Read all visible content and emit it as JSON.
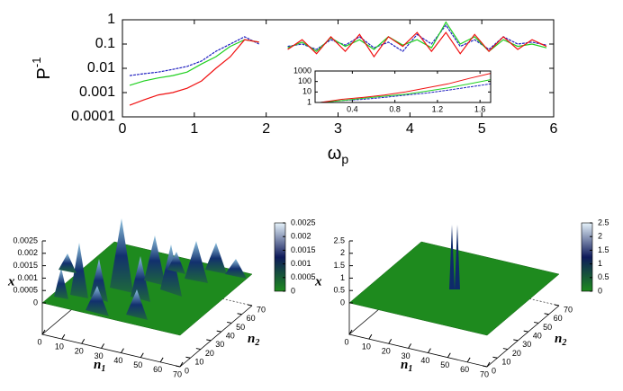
{
  "chart_data": [
    {
      "type": "line",
      "xlabel": "ω",
      "xlabel_sub": "p",
      "ylabel": "P",
      "ylabel_sup": "-1",
      "xlim": [
        0,
        6
      ],
      "xticks": [
        0,
        1,
        2,
        3,
        4,
        5,
        6
      ],
      "ylim": [
        0.0001,
        1
      ],
      "yticks": [
        1,
        0.1,
        0.01,
        0.001,
        0.0001
      ],
      "log_y": true,
      "x": [
        0.1,
        0.3,
        0.5,
        0.7,
        0.9,
        1.1,
        1.3,
        1.5,
        1.7,
        1.9,
        2.1,
        2.3,
        2.5,
        2.7,
        2.9,
        3.1,
        3.3,
        3.5,
        3.7,
        3.9,
        4.1,
        4.3,
        4.5,
        4.7,
        4.9,
        5.1,
        5.3,
        5.5,
        5.7,
        5.9
      ],
      "series": [
        {
          "color": "#2020c0",
          "values": [
            0.005,
            0.006,
            0.007,
            0.009,
            0.012,
            0.02,
            0.05,
            0.1,
            0.2,
            0.1,
            null,
            0.08,
            0.1,
            0.06,
            0.15,
            0.09,
            0.2,
            0.07,
            0.12,
            0.05,
            0.25,
            0.1,
            0.6,
            0.08,
            0.15,
            0.06,
            0.2,
            0.1,
            0.12,
            0.09
          ]
        },
        {
          "color": "#20d020",
          "values": [
            0.002,
            0.003,
            0.004,
            0.005,
            0.007,
            0.015,
            0.03,
            0.08,
            0.15,
            0.12,
            null,
            0.07,
            0.12,
            0.05,
            0.18,
            0.08,
            0.15,
            0.06,
            0.2,
            0.09,
            0.15,
            0.07,
            0.8,
            0.1,
            0.2,
            0.05,
            0.15,
            0.08,
            0.1,
            0.07
          ]
        },
        {
          "color": "#f01010",
          "values": [
            0.0003,
            0.0005,
            0.0008,
            0.001,
            0.0015,
            0.003,
            0.01,
            0.03,
            0.15,
            0.12,
            null,
            0.06,
            0.15,
            0.04,
            0.2,
            0.05,
            0.25,
            0.03,
            0.2,
            0.08,
            0.3,
            0.05,
            0.3,
            0.04,
            0.25,
            0.05,
            0.2,
            0.06,
            0.15,
            0.08
          ]
        }
      ],
      "inset": {
        "xlim": [
          0.05,
          1.7
        ],
        "xticks": [
          0.4,
          0.8,
          1.2,
          1.6
        ],
        "ylim": [
          1,
          1000
        ],
        "yticks": [
          1000,
          100,
          10,
          1
        ],
        "log_y": true,
        "x": [
          0.1,
          0.3,
          0.5,
          0.7,
          0.9,
          1.1,
          1.3,
          1.5,
          1.7
        ],
        "series": [
          {
            "color": "#2020c0",
            "values": [
              1,
              1.5,
              2,
              3,
              5,
              8,
              15,
              30,
              60
            ]
          },
          {
            "color": "#20d020",
            "values": [
              1,
              1.5,
              2.5,
              4,
              6,
              12,
              25,
              60,
              150
            ]
          },
          {
            "color": "#f01010",
            "values": [
              1,
              2,
              3,
              5,
              10,
              25,
              60,
              200,
              600
            ]
          }
        ]
      }
    },
    {
      "type": "surface",
      "zlabel": "x",
      "n1label": "n",
      "n1sub": "1",
      "n2label": "n",
      "n2sub": "2",
      "n1lim": [
        0,
        70
      ],
      "n1ticks": [
        0,
        10,
        20,
        30,
        40,
        50,
        60,
        70
      ],
      "n2lim": [
        0,
        70
      ],
      "n2ticks": [
        0,
        10,
        20,
        30,
        40,
        50,
        60,
        70
      ],
      "zlim": [
        0,
        0.0025
      ],
      "zticks": [
        0,
        0.0005,
        0.001,
        0.0015,
        0.002,
        0.0025
      ],
      "colorbar": {
        "lim": [
          0,
          0.0025
        ],
        "ticks": [
          0,
          0.0005,
          0.001,
          0.0015,
          0.002,
          0.0025
        ],
        "colors": [
          "#1e8a1e",
          "#0e1a5a",
          "#e6f3fb"
        ]
      }
    },
    {
      "type": "surface",
      "zlabel": "x",
      "n1label": "n",
      "n1sub": "1",
      "n2label": "n",
      "n2sub": "2",
      "n1lim": [
        0,
        70
      ],
      "n1ticks": [
        0,
        10,
        20,
        30,
        40,
        50,
        60,
        70
      ],
      "n2lim": [
        0,
        70
      ],
      "n2ticks": [
        0,
        10,
        20,
        30,
        40,
        50,
        60,
        70
      ],
      "zlim": [
        0,
        2.5
      ],
      "zticks": [
        0,
        0.5,
        1,
        1.5,
        2,
        2.5
      ],
      "colorbar": {
        "lim": [
          0,
          2.5
        ],
        "ticks": [
          0,
          0.5,
          1,
          1.5,
          2,
          2.5
        ],
        "colors": [
          "#1e8a1e",
          "#0e1a5a",
          "#e6f3fb"
        ]
      }
    }
  ]
}
